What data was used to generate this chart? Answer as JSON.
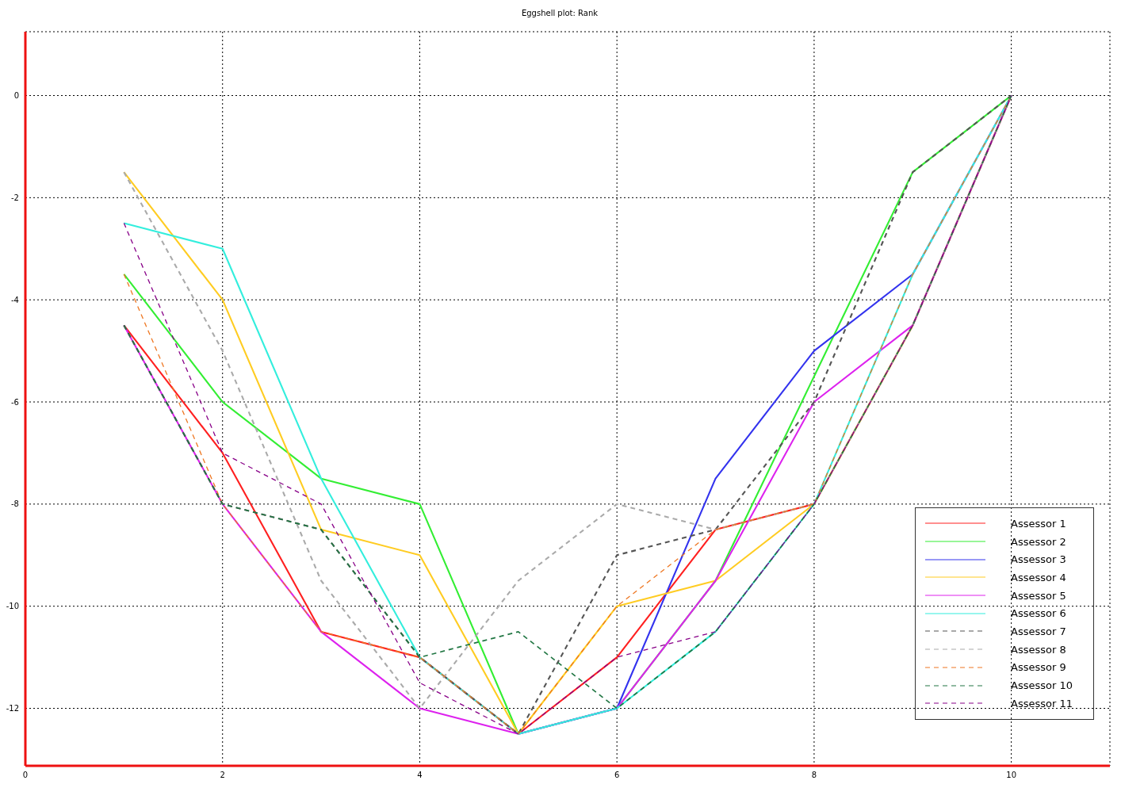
{
  "chart_data": {
    "type": "line",
    "title": "Eggshell plot: Rank",
    "x": [
      1,
      2,
      3,
      4,
      5,
      6,
      7,
      8,
      9,
      10
    ],
    "xlim": [
      0,
      11
    ],
    "xticks": [
      0,
      2,
      4,
      6,
      8,
      10
    ],
    "ylim": [
      -13.125,
      1.25
    ],
    "yticks": [
      -12,
      -10,
      -8,
      -6,
      -4,
      -2,
      0
    ],
    "grid": true,
    "legend": "bottom right",
    "marker": "none",
    "series": [
      {
        "name": "Assessor 1",
        "color": "#ff2020",
        "line_style": "solid",
        "values": [
          -4.5,
          -7,
          -10.5,
          -11,
          -12.5,
          -11,
          -8.5,
          -8,
          -4.5,
          0
        ]
      },
      {
        "name": "Assessor 2",
        "color": "#33ee33",
        "line_style": "solid",
        "values": [
          -3.5,
          -6,
          -7.5,
          -8,
          -12.5,
          -12,
          -9.5,
          -5.5,
          -1.5,
          0
        ]
      },
      {
        "name": "Assessor 3",
        "color": "#3333ee",
        "line_style": "solid",
        "values": [
          null,
          null,
          null,
          null,
          -12.5,
          -12,
          -7.5,
          -5,
          -3.5,
          0
        ]
      },
      {
        "name": "Assessor 4",
        "color": "#ffcc22",
        "line_style": "solid",
        "values": [
          -1.5,
          -4,
          -8.5,
          -9,
          -12.5,
          -10,
          -9.5,
          -8,
          -4.5,
          0
        ]
      },
      {
        "name": "Assessor 5",
        "color": "#dd22ee",
        "line_style": "solid",
        "values": [
          -4.5,
          -8,
          -10.5,
          -12,
          -12.5,
          -12,
          -9.5,
          -6,
          -4.5,
          0
        ]
      },
      {
        "name": "Assessor 6",
        "color": "#33eedd",
        "line_style": "solid",
        "values": [
          -2.5,
          -3,
          -7.5,
          -11,
          -12.5,
          -12,
          -10.5,
          -8,
          -3.5,
          0
        ]
      },
      {
        "name": "Assessor 7",
        "color": "#555555",
        "line_style": "dashed",
        "values": [
          -4.5,
          -8,
          -8.5,
          -11,
          -12.5,
          -9,
          -8.5,
          -6,
          -1.5,
          0
        ]
      },
      {
        "name": "Assessor 8",
        "color": "#aaaaaa",
        "line_style": "dashed",
        "values": [
          -1.5,
          -5,
          -9.5,
          -12,
          -9.5,
          -8,
          -8.5,
          -8,
          -4.5,
          0
        ]
      },
      {
        "name": "Assessor 9",
        "color": "#ee7722",
        "line_style": "dashed",
        "values": [
          -3.5,
          -8,
          -10.5,
          -11,
          -12.5,
          -10,
          -8.5,
          -8,
          -3.5,
          0
        ]
      },
      {
        "name": "Assessor 10",
        "color": "#227744",
        "line_style": "dashed",
        "values": [
          -4.5,
          -8,
          -8.5,
          -11,
          -10.5,
          -12,
          -10.5,
          -8,
          -4.5,
          0
        ]
      },
      {
        "name": "Assessor 11",
        "color": "#880088",
        "line_style": "dashed",
        "values": [
          -2.5,
          -7,
          -8,
          -11.5,
          -12.5,
          -11,
          -10.5,
          -8,
          -4.5,
          0
        ]
      }
    ]
  }
}
